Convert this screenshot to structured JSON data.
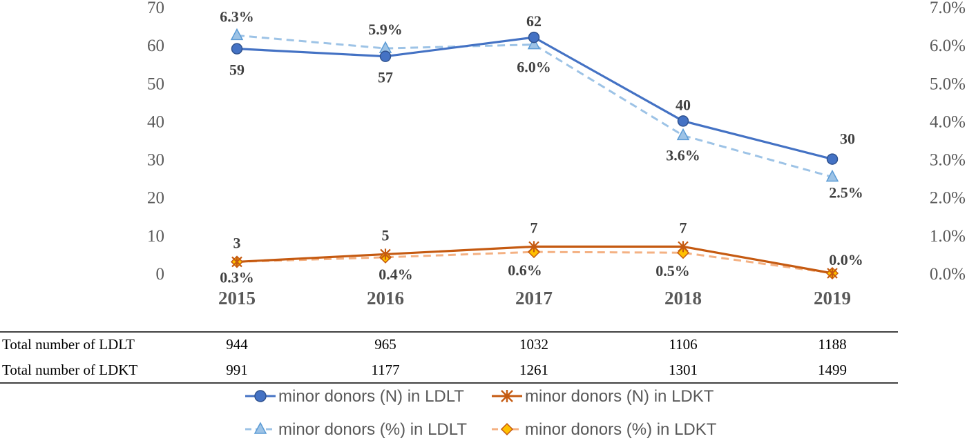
{
  "chart_data": {
    "type": "line",
    "categories": [
      "2015",
      "2016",
      "2017",
      "2018",
      "2019"
    ],
    "y_left": {
      "range": [
        0,
        70
      ],
      "ticks": [
        "0",
        "10",
        "20",
        "30",
        "40",
        "50",
        "60",
        "70"
      ]
    },
    "y_right": {
      "range": [
        0,
        7
      ],
      "ticks": [
        "0.0%",
        "1.0%",
        "2.0%",
        "3.0%",
        "4.0%",
        "5.0%",
        "6.0%",
        "7.0%"
      ]
    },
    "series": [
      {
        "name": "minor donors (N) in LDLT",
        "axis": "left",
        "values": [
          59,
          57,
          62,
          40,
          30
        ],
        "labels": [
          "59",
          "57",
          "62",
          "40",
          "30"
        ],
        "color": "#4472C4",
        "marker": "circle",
        "dash": false
      },
      {
        "name": "minor donors (N) in LDKT",
        "axis": "left",
        "values": [
          3,
          5,
          7,
          7,
          0
        ],
        "labels": [
          "3",
          "5",
          "7",
          "7",
          ""
        ],
        "color": "#C55A11",
        "marker": "star",
        "dash": false
      },
      {
        "name": "minor donors (%) in LDLT",
        "axis": "right",
        "values": [
          6.25,
          5.91,
          6.01,
          3.62,
          2.53
        ],
        "labels": [
          "6.3%",
          "5.9%",
          "6.0%",
          "3.6%",
          "2.5%"
        ],
        "color": "#9DC3E6",
        "marker": "triangle",
        "dash": true
      },
      {
        "name": "minor donors (%) in LDKT",
        "axis": "right",
        "values": [
          0.3,
          0.42,
          0.56,
          0.54,
          0.0
        ],
        "labels": [
          "0.3%",
          "0.4%",
          "0.6%",
          "0.5%",
          "0.0%"
        ],
        "color": "#F4B183",
        "marker": "diamond",
        "dash": true
      }
    ]
  },
  "table": {
    "rows": [
      {
        "label": "Total number of LDLT",
        "values": [
          "944",
          "965",
          "1032",
          "1106",
          "1188"
        ]
      },
      {
        "label": "Total number of LDKT",
        "values": [
          "991",
          "1177",
          "1261",
          "1301",
          "1499"
        ]
      }
    ]
  }
}
